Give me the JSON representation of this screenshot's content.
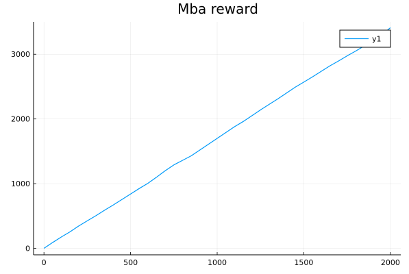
{
  "chart_data": {
    "type": "line",
    "title": "Mba reward",
    "xlabel": "",
    "ylabel": "",
    "xlim": [
      -60,
      2060
    ],
    "ylim": [
      -100,
      3500
    ],
    "xticks": [
      0,
      500,
      1000,
      1500,
      2000
    ],
    "yticks": [
      0,
      1000,
      2000,
      3000
    ],
    "grid": true,
    "legend_position": "top-right",
    "series": [
      {
        "name": "y1",
        "color": "#009af9",
        "x": [
          0,
          50,
          100,
          150,
          200,
          250,
          300,
          350,
          400,
          450,
          500,
          550,
          600,
          650,
          700,
          750,
          800,
          850,
          900,
          950,
          1000,
          1050,
          1100,
          1150,
          1200,
          1250,
          1300,
          1350,
          1400,
          1450,
          1500,
          1550,
          1600,
          1650,
          1700,
          1750,
          1800,
          1850,
          1900,
          1950,
          2000
        ],
        "y": [
          0,
          90,
          175,
          255,
          345,
          425,
          505,
          590,
          670,
          755,
          840,
          925,
          1005,
          1100,
          1200,
          1290,
          1360,
          1430,
          1520,
          1610,
          1700,
          1790,
          1880,
          1960,
          2050,
          2140,
          2225,
          2310,
          2400,
          2490,
          2570,
          2650,
          2735,
          2820,
          2895,
          2975,
          3050,
          3130,
          3210,
          3300,
          3410
        ]
      }
    ]
  }
}
